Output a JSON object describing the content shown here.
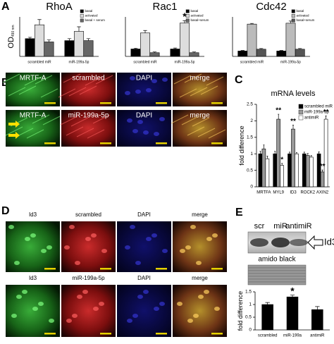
{
  "panels": [
    "A",
    "B",
    "C",
    "D",
    "E"
  ],
  "chart_data": [
    {
      "type": "bar",
      "title": "RhoA",
      "ylabel": "OD",
      "ylabel_sub": "490 nm",
      "categories": [
        "scrambled miR",
        "miR-199a-5p"
      ],
      "ylim": [
        0,
        0.6
      ],
      "legend": "upper right",
      "series": [
        {
          "name": "basal",
          "color": "#000000",
          "values": [
            0.27,
            0.24
          ],
          "errors": [
            0.02,
            0.03
          ]
        },
        {
          "name": "activated",
          "color": "#dddddd",
          "values": [
            0.48,
            0.38
          ],
          "errors": [
            0.08,
            0.07
          ]
        },
        {
          "name": "basal + serum",
          "color": "#666666",
          "values": [
            0.22,
            0.24
          ],
          "errors": [
            0.03,
            0.03
          ]
        }
      ]
    },
    {
      "type": "bar",
      "title": "Rac1",
      "categories": [
        "scrambled miR",
        "miR-199a-5p"
      ],
      "ylim": [
        0,
        1.6
      ],
      "legend": "upper right",
      "series": [
        {
          "name": "basal",
          "color": "#000000",
          "values": [
            0.3,
            0.3
          ],
          "errors": [
            0.03,
            0.04
          ]
        },
        {
          "name": "activated",
          "color": "#dddddd",
          "values": [
            0.95,
            1.35
          ],
          "errors": [
            0.1,
            0.1
          ]
        },
        {
          "name": "basal+serum",
          "color": "#666666",
          "values": [
            0.15,
            0.15
          ],
          "errors": [
            0.03,
            0.03
          ]
        }
      ],
      "annotations": [
        {
          "text": "*",
          "x": "miR-199a-5p",
          "series": "activated"
        }
      ]
    },
    {
      "type": "bar",
      "title": "Cdc42",
      "categories": [
        "scrambled miR",
        "miR-199a-5p"
      ],
      "ylim": [
        0,
        2.2
      ],
      "legend": "upper right",
      "series": [
        {
          "name": "basal",
          "color": "#000000",
          "values": [
            0.3,
            0.3
          ],
          "errors": [
            0.03,
            0.03
          ]
        },
        {
          "name": "activated",
          "color": "#bbbbbb",
          "values": [
            1.8,
            1.85
          ],
          "errors": [
            0.04,
            0.12
          ]
        },
        {
          "name": "basal+serum",
          "color": "#555555",
          "values": [
            0.4,
            0.4
          ],
          "errors": [
            0.04,
            0.04
          ]
        }
      ]
    },
    {
      "type": "bar",
      "title": "mRNA levels",
      "ylabel": "fold difference",
      "categories": [
        "MRTFA",
        "MYL9",
        "ID3",
        "ROCK2",
        "AXIN2"
      ],
      "ylim": [
        0,
        2.5
      ],
      "yticks": [
        0,
        0.5,
        1,
        1.5,
        2,
        2.5
      ],
      "legend": "upper right",
      "series": [
        {
          "name": "scrambled miR",
          "color": "#000000",
          "values": [
            1,
            1,
            1,
            1,
            1
          ],
          "errors": [
            0.08,
            0.08,
            0.05,
            0.05,
            0.06
          ]
        },
        {
          "name": "miR-199a-5p",
          "color": "#999999",
          "values": [
            1.15,
            2.05,
            1.75,
            0.95,
            0.45
          ],
          "errors": [
            0.12,
            0.15,
            0.12,
            0.06,
            0.06
          ]
        },
        {
          "name": "antimiR",
          "color": "#ffffff",
          "values": [
            0.85,
            0.65,
            1.0,
            0.9,
            2.05
          ],
          "errors": [
            0.08,
            0.06,
            0.04,
            0.05,
            0.1
          ]
        }
      ],
      "annotations": [
        {
          "text": "**",
          "x": "MYL9",
          "series": "miR-199a-5p"
        },
        {
          "text": "*",
          "x": "MYL9",
          "series": "antimiR"
        },
        {
          "text": "**",
          "x": "ID3",
          "series": "miR-199a-5p"
        },
        {
          "text": "**",
          "x": "AXIN2",
          "series": "miR-199a-5p"
        },
        {
          "text": "**",
          "x": "AXIN2",
          "series": "antimiR"
        }
      ]
    },
    {
      "type": "bar",
      "ylabel": "fold difference",
      "categories": [
        "scrambled",
        "miR-199a",
        "antimiR"
      ],
      "ylim": [
        0,
        1.5
      ],
      "yticks": [
        0,
        0.5,
        1,
        1.5
      ],
      "series": [
        {
          "color": "#000000",
          "values": [
            1.0,
            1.3,
            0.8
          ],
          "errors": [
            0.08,
            0.07,
            0.12
          ]
        }
      ],
      "annotations": [
        {
          "text": "*",
          "x": "miR-199a",
          "series": 0
        }
      ]
    }
  ],
  "microscopy": {
    "B": [
      [
        "MRTF-A",
        "scrambled",
        "DAPI",
        "merge"
      ],
      [
        "MRTF-A",
        "miR-199a-5p",
        "DAPI",
        "merge"
      ]
    ],
    "D": [
      [
        "Id3",
        "scrambled",
        "DAPI",
        "merge"
      ],
      [
        "Id3",
        "miR-199a-5p",
        "DAPI",
        "merge"
      ]
    ]
  },
  "blot": {
    "lanes": [
      "scr",
      "miR",
      "antimiR"
    ],
    "target": "Id3",
    "loading": "amido black"
  }
}
